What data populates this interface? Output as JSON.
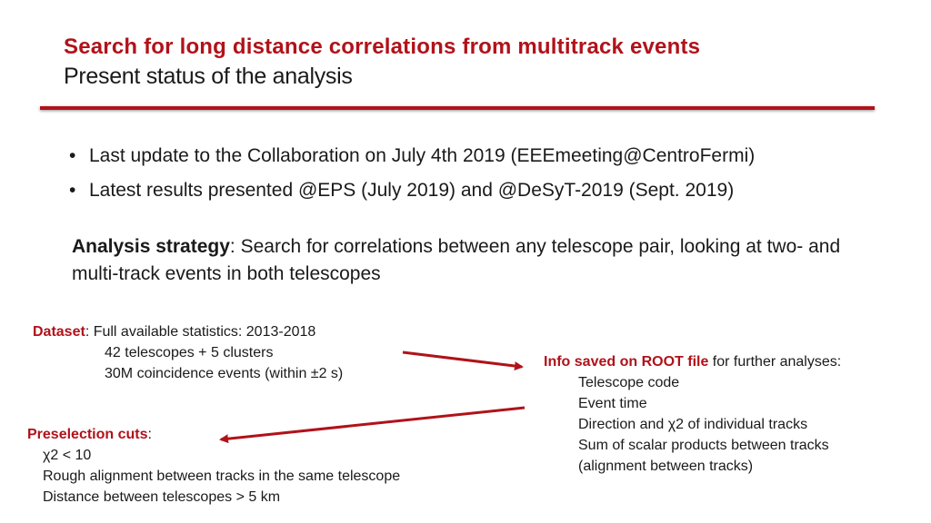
{
  "header": {
    "title": "Search for long distance correlations from multitrack events",
    "subtitle": "Present status of the analysis"
  },
  "bullets": [
    "Last update to the Collaboration on July 4th 2019 (EEEmeeting@CentroFermi)",
    "Latest results presented @EPS (July 2019) and @DeSyT-2019 (Sept. 2019)"
  ],
  "bullet_glyph": "•",
  "strategy": {
    "label": "Analysis strategy",
    "text": ": Search for correlations between any telescope pair, looking at two- and multi-track events in both telescopes"
  },
  "dataset": {
    "label": "Dataset",
    "first_line": ":  Full available statistics: 2013-2018",
    "lines": [
      "42 telescopes + 5 clusters",
      "30M coincidence events (within  ±2 s)"
    ]
  },
  "preselection": {
    "label": "Preselection cuts",
    "colon": ":",
    "lines": [
      "χ2  < 10",
      "Rough alignment  between tracks  in the same telescope",
      "Distance between telescopes > 5 km"
    ]
  },
  "info": {
    "label": "Info saved on ROOT file",
    "suffix": " for further analyses:",
    "lines": [
      "Telescope code",
      "Event time",
      "Direction and  χ2 of  individual tracks",
      "Sum of scalar products between tracks",
      "(alignment between tracks)"
    ]
  },
  "colors": {
    "accent": "#b1121a",
    "text": "#1a1a1a"
  }
}
